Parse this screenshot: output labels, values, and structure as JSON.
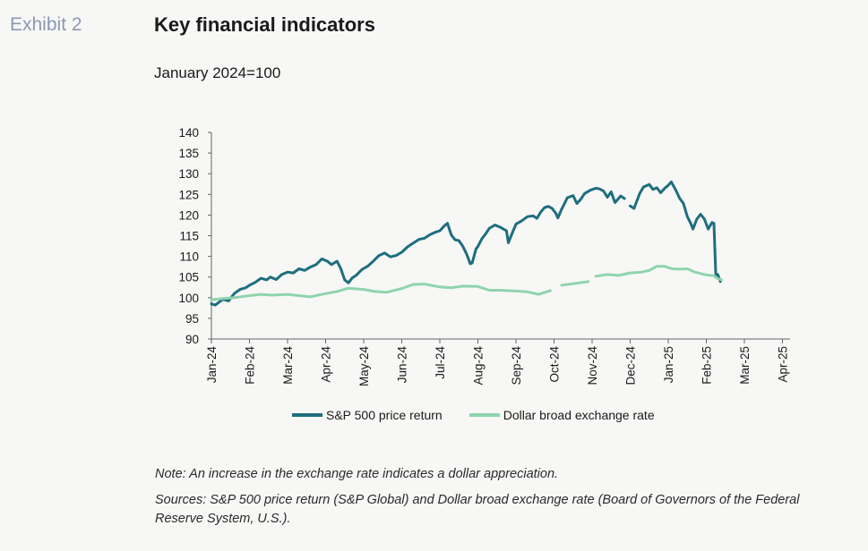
{
  "header": {
    "exhibit": "Exhibit 2",
    "title": "Key financial indicators",
    "subtitle": "January 2024=100"
  },
  "footer": {
    "note": "Note: An increase in the exchange rate indicates a dollar appreciation.",
    "sources": "Sources: S&P 500 price return (S&P Global) and Dollar broad exchange rate (Board of Governors of the Federal Reserve System, U.S.)."
  },
  "chart_data": {
    "type": "line",
    "title": "Key financial indicators",
    "subtitle": "January 2024=100",
    "xlabel": "",
    "ylabel": "",
    "ylim": [
      90,
      140
    ],
    "yticks": [
      90,
      95,
      100,
      105,
      110,
      115,
      120,
      125,
      130,
      135,
      140
    ],
    "xticks": [
      "Jan-24",
      "Feb-24",
      "Mar-24",
      "Apr-24",
      "May-24",
      "Jun-24",
      "Jul-24",
      "Aug-24",
      "Sep-24",
      "Oct-24",
      "Nov-24",
      "Dec-24",
      "Jan-25",
      "Feb-25",
      "Mar-25",
      "Apr-25"
    ],
    "grid": false,
    "legend_position": "bottom",
    "series": [
      {
        "name": "S&P 500 price return",
        "color": "#1e6e7e",
        "points": [
          [
            0,
            98.5
          ],
          [
            0.1,
            98.2
          ],
          [
            0.3,
            99.6
          ],
          [
            0.45,
            99.2
          ],
          [
            0.6,
            101.0
          ],
          [
            0.75,
            102.0
          ],
          [
            0.9,
            102.4
          ],
          [
            1.0,
            103.0
          ],
          [
            1.15,
            103.7
          ],
          [
            1.3,
            104.7
          ],
          [
            1.45,
            104.3
          ],
          [
            1.55,
            105.0
          ],
          [
            1.7,
            104.4
          ],
          [
            1.85,
            105.6
          ],
          [
            2.0,
            106.2
          ],
          [
            2.15,
            106.0
          ],
          [
            2.3,
            107.0
          ],
          [
            2.45,
            106.6
          ],
          [
            2.6,
            107.4
          ],
          [
            2.75,
            108.0
          ],
          [
            2.9,
            109.4
          ],
          [
            3.0,
            109.0
          ],
          [
            3.05,
            108.8
          ],
          [
            3.15,
            108.0
          ],
          [
            3.3,
            108.8
          ],
          [
            3.4,
            107.0
          ],
          [
            3.5,
            104.3
          ],
          [
            3.6,
            103.6
          ],
          [
            3.7,
            104.8
          ],
          [
            3.8,
            105.4
          ],
          [
            3.95,
            106.8
          ],
          [
            4.1,
            107.6
          ],
          [
            4.25,
            108.8
          ],
          [
            4.4,
            110.2
          ],
          [
            4.55,
            110.8
          ],
          [
            4.7,
            109.9
          ],
          [
            4.85,
            110.2
          ],
          [
            5.0,
            111.0
          ],
          [
            5.15,
            112.3
          ],
          [
            5.3,
            113.2
          ],
          [
            5.45,
            114.1
          ],
          [
            5.6,
            114.4
          ],
          [
            5.75,
            115.3
          ],
          [
            5.9,
            115.9
          ],
          [
            6.0,
            116.2
          ],
          [
            6.1,
            117.2
          ],
          [
            6.2,
            118.0
          ],
          [
            6.3,
            115.2
          ],
          [
            6.4,
            114.0
          ],
          [
            6.5,
            113.8
          ],
          [
            6.6,
            112.5
          ],
          [
            6.7,
            110.6
          ],
          [
            6.8,
            108.2
          ],
          [
            6.85,
            108.4
          ],
          [
            6.95,
            111.8
          ],
          [
            7.0,
            112.4
          ],
          [
            7.1,
            114.2
          ],
          [
            7.2,
            115.4
          ],
          [
            7.3,
            116.8
          ],
          [
            7.45,
            117.6
          ],
          [
            7.6,
            117.0
          ],
          [
            7.75,
            116.2
          ],
          [
            7.8,
            113.3
          ],
          [
            7.9,
            115.6
          ],
          [
            8.0,
            117.8
          ],
          [
            8.15,
            118.6
          ],
          [
            8.3,
            119.6
          ],
          [
            8.45,
            119.8
          ],
          [
            8.55,
            119.2
          ],
          [
            8.65,
            120.7
          ],
          [
            8.75,
            121.8
          ],
          [
            8.85,
            122.1
          ],
          [
            8.95,
            121.6
          ],
          [
            9.05,
            120.4
          ],
          [
            9.1,
            119.3
          ],
          [
            9.2,
            121.4
          ],
          [
            9.35,
            124.2
          ],
          [
            9.5,
            124.7
          ],
          [
            9.6,
            122.8
          ],
          [
            9.7,
            123.8
          ],
          [
            9.8,
            125.2
          ],
          [
            9.95,
            126.0
          ],
          [
            10.1,
            126.5
          ],
          [
            10.2,
            126.3
          ],
          [
            10.3,
            125.8
          ],
          [
            10.4,
            124.3
          ],
          [
            10.5,
            125.6
          ],
          [
            10.6,
            123.0
          ],
          [
            10.75,
            124.6
          ],
          [
            10.85,
            124.0
          ],
          [
            11.0,
            122.2
          ],
          [
            11.1,
            121.6
          ],
          [
            11.25,
            125.2
          ],
          [
            11.35,
            126.8
          ],
          [
            11.5,
            127.4
          ],
          [
            11.6,
            126.2
          ],
          [
            11.7,
            126.6
          ],
          [
            11.8,
            125.4
          ],
          [
            11.9,
            126.4
          ],
          [
            12.0,
            127.2
          ],
          [
            12.08,
            128.0
          ],
          [
            12.2,
            126.0
          ],
          [
            12.3,
            124.0
          ],
          [
            12.4,
            122.8
          ],
          [
            12.5,
            119.6
          ],
          [
            12.6,
            117.8
          ],
          [
            12.65,
            116.6
          ],
          [
            12.75,
            119.0
          ],
          [
            12.85,
            120.2
          ],
          [
            12.95,
            119.0
          ],
          [
            13.05,
            116.6
          ],
          [
            13.15,
            118.2
          ],
          [
            13.2,
            118.0
          ],
          [
            13.25,
            105.4
          ],
          [
            13.3,
            105.6
          ],
          [
            13.37,
            103.9
          ]
        ],
        "gaps_after_x": [
          10.85
        ]
      },
      {
        "name": "Dollar broad exchange rate",
        "color": "#8fd4ae",
        "points": [
          [
            0,
            99.5
          ],
          [
            0.3,
            99.8
          ],
          [
            0.6,
            100.0
          ],
          [
            1.0,
            100.5
          ],
          [
            1.3,
            100.8
          ],
          [
            1.6,
            100.6
          ],
          [
            2.0,
            100.8
          ],
          [
            2.3,
            100.5
          ],
          [
            2.6,
            100.2
          ],
          [
            3.0,
            101.0
          ],
          [
            3.3,
            101.5
          ],
          [
            3.6,
            102.3
          ],
          [
            4.0,
            102.0
          ],
          [
            4.3,
            101.5
          ],
          [
            4.6,
            101.3
          ],
          [
            5.0,
            102.2
          ],
          [
            5.3,
            103.2
          ],
          [
            5.6,
            103.3
          ],
          [
            6.0,
            102.6
          ],
          [
            6.3,
            102.4
          ],
          [
            6.6,
            102.8
          ],
          [
            7.0,
            102.7
          ],
          [
            7.3,
            101.8
          ],
          [
            7.6,
            101.8
          ],
          [
            8.0,
            101.6
          ],
          [
            8.3,
            101.4
          ],
          [
            8.6,
            100.8
          ],
          [
            8.9,
            101.7
          ],
          [
            9.2,
            103.0
          ],
          [
            9.5,
            103.4
          ],
          [
            9.9,
            103.9
          ],
          [
            10.1,
            105.2
          ],
          [
            10.4,
            105.6
          ],
          [
            10.7,
            105.4
          ],
          [
            11.0,
            106.0
          ],
          [
            11.3,
            106.2
          ],
          [
            11.5,
            106.6
          ],
          [
            11.7,
            107.6
          ],
          [
            11.9,
            107.6
          ],
          [
            12.1,
            107.0
          ],
          [
            12.3,
            106.9
          ],
          [
            12.5,
            107.0
          ],
          [
            12.7,
            106.2
          ],
          [
            13.0,
            105.5
          ],
          [
            13.2,
            105.3
          ],
          [
            13.3,
            104.6
          ],
          [
            13.4,
            104.3
          ]
        ],
        "gaps_after_x": [
          8.9,
          9.9
        ]
      }
    ]
  }
}
